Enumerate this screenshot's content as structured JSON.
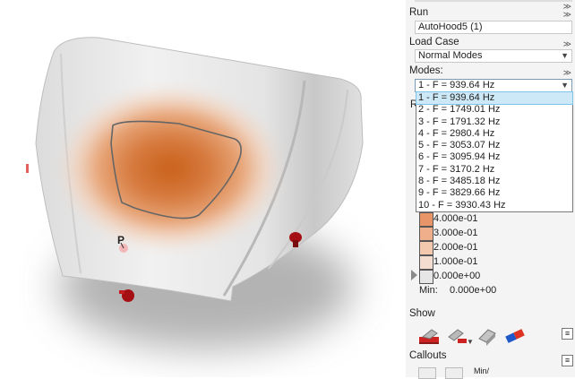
{
  "panel": {
    "run": {
      "label": "Run",
      "value": "AutoHood5 (1)"
    },
    "load_case": {
      "label": "Load Case",
      "value": "Normal Modes"
    },
    "modes": {
      "label": "Modes:",
      "selected": "1 - F = 939.64 Hz",
      "options": [
        "1 - F = 939.64 Hz",
        "2 - F = 1749.01 Hz",
        "3 - F = 1791.32 Hz",
        "4 - F = 2980.4 Hz",
        "5 - F = 3053.07 Hz",
        "6 - F = 3095.94 Hz",
        "7 - F = 3170.2 Hz",
        "8 - F = 3485.18 Hz",
        "9 - F = 3829.66 Hz",
        "10 - F = 3930.43 Hz"
      ]
    },
    "legend": {
      "values": [
        "4.000e-01",
        "3.000e-01",
        "2.000e-01",
        "1.000e-01",
        "0.000e+00"
      ],
      "colors": [
        "#e8956a",
        "#eeaf8a",
        "#f3c8ae",
        "#f3ddd0",
        "#e6e6e6"
      ],
      "min_label": "Min:",
      "min_value": "0.000e+00"
    },
    "show": {
      "label": "Show",
      "icons": [
        "solid-view-icon",
        "cutaway-view-icon",
        "iso-view-icon",
        "magnet-icon"
      ]
    },
    "callouts": {
      "label": "Callouts",
      "minmax_label": "Min/"
    }
  },
  "viewport": {
    "marker_label": "P"
  }
}
